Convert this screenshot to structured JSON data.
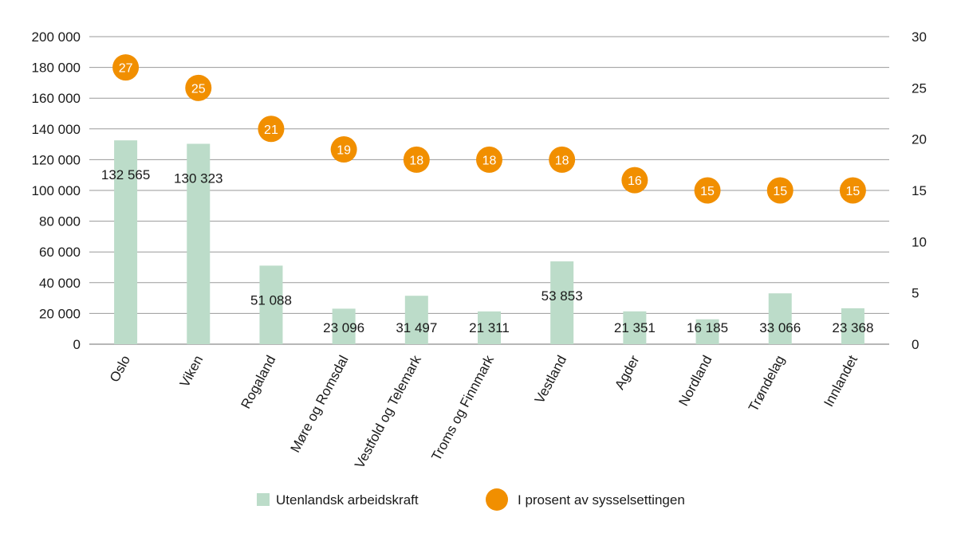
{
  "chart_data": {
    "type": "bar",
    "title": "",
    "categories": [
      "Oslo",
      "Viken",
      "Rogaland",
      "Møre og Romsdal",
      "Vestfold og Telemark",
      "Troms og Finnmark",
      "Vestland",
      "Agder",
      "Nordland",
      "Trøndelag",
      "Innlandet"
    ],
    "series": [
      {
        "name": "Utenlandsk arbeidskraft",
        "type": "bar",
        "axis": "left",
        "color": "#bcdcc9",
        "values": [
          132565,
          130323,
          51088,
          23096,
          31497,
          21311,
          53853,
          21351,
          16185,
          33066,
          23368
        ],
        "labels": [
          "132 565",
          "130 323",
          "51 088",
          "23 096",
          "31 497",
          "21 311",
          "53 853",
          "21 351",
          "16 185",
          "33 066",
          "23 368"
        ]
      },
      {
        "name": "I prosent av sysselsettingen",
        "type": "scatter",
        "axis": "right",
        "color": "#f18f00",
        "values": [
          27,
          25,
          21,
          19,
          18,
          18,
          18,
          16,
          15,
          15,
          15
        ],
        "labels": [
          "27",
          "25",
          "21",
          "19",
          "18",
          "18",
          "18",
          "16",
          "15",
          "15",
          "15"
        ]
      }
    ],
    "y_left": {
      "range": [
        0,
        200000
      ],
      "ticks": [
        0,
        20000,
        40000,
        60000,
        80000,
        100000,
        120000,
        140000,
        160000,
        180000,
        200000
      ],
      "tick_labels": [
        "0",
        "20 000",
        "40 000",
        "60 000",
        "80 000",
        "100 000",
        "120 000",
        "140 000",
        "160 000",
        "180 000",
        "200 000"
      ]
    },
    "y_right": {
      "range": [
        0,
        30
      ],
      "ticks": [
        0,
        5,
        10,
        15,
        20,
        25,
        30
      ],
      "tick_labels": [
        "0",
        "5",
        "10",
        "15",
        "20",
        "25",
        "30"
      ]
    },
    "grid": true,
    "legend": "bottom-center"
  }
}
